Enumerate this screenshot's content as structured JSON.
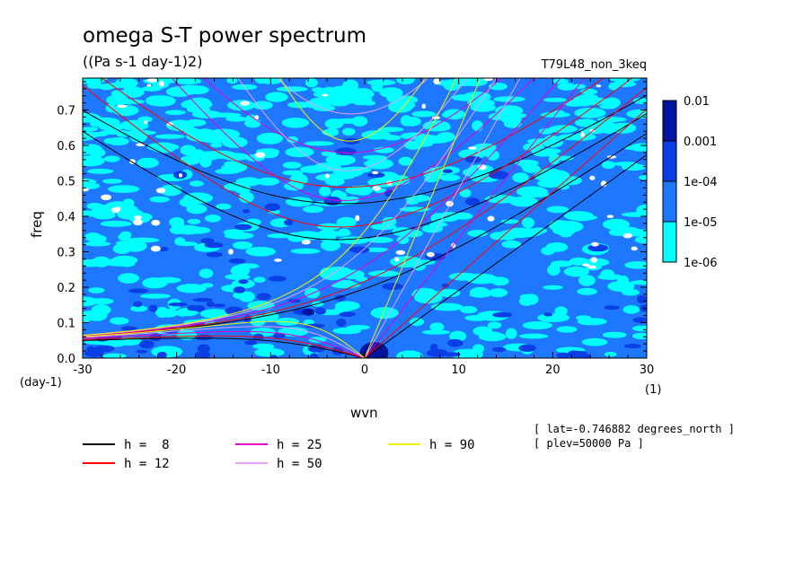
{
  "chart_data": {
    "type": "heatmap",
    "title": "omega S-T power spectrum",
    "subtitle": "((Pa s-1 day-1)2)",
    "case_label": "T79L48_non_3keq",
    "xlabel": "wvn",
    "ylabel": "freq",
    "x_unit_label": "(1)",
    "y_unit_label": "(day-1)",
    "xlim": [
      -30,
      30
    ],
    "ylim": [
      0,
      0.79
    ],
    "xticks": [
      "-30",
      "-20",
      "-10",
      "0",
      "10",
      "20",
      "30"
    ],
    "yticks": [
      "0.0",
      "0.1",
      "0.2",
      "0.3",
      "0.4",
      "0.5",
      "0.6",
      "0.7"
    ],
    "colorbar": {
      "levels": [
        "1e-06",
        "1e-05",
        "1e-04",
        "0.001",
        "0.01"
      ],
      "colors": [
        "#00ffff",
        "#1e78ff",
        "#0a3fe6",
        "#0014a0",
        "#3c148c"
      ]
    },
    "dispersion_curves": [
      {
        "name": "h =  8",
        "h": 8,
        "color": "#000000"
      },
      {
        "name": "h = 12",
        "h": 12,
        "color": "#ff0000"
      },
      {
        "name": "h = 25",
        "h": 25,
        "color": "#e600c8"
      },
      {
        "name": "h = 50",
        "h": 50,
        "color": "#e6a0ff"
      },
      {
        "name": "h = 90",
        "h": 90,
        "color": "#f0f000"
      }
    ],
    "annotations": [
      "[ lat=-0.746882 degrees_north ]",
      "[ plev=50000 Pa ]"
    ]
  }
}
